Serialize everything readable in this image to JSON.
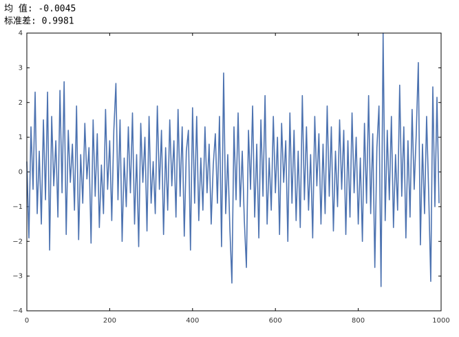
{
  "chart_data": {
    "type": "line",
    "annotations": [
      "均  值: -0.0045",
      "标准差: 0.9981"
    ],
    "x": [
      0,
      5,
      10,
      15,
      20,
      25,
      30,
      35,
      40,
      45,
      50,
      55,
      60,
      65,
      70,
      75,
      80,
      85,
      90,
      95,
      100,
      105,
      110,
      115,
      120,
      125,
      130,
      135,
      140,
      145,
      150,
      155,
      160,
      165,
      170,
      175,
      180,
      185,
      190,
      195,
      200,
      205,
      210,
      215,
      220,
      225,
      230,
      235,
      240,
      245,
      250,
      255,
      260,
      265,
      270,
      275,
      280,
      285,
      290,
      295,
      300,
      305,
      310,
      315,
      320,
      325,
      330,
      335,
      340,
      345,
      350,
      355,
      360,
      365,
      370,
      375,
      380,
      385,
      390,
      395,
      400,
      405,
      410,
      415,
      420,
      425,
      430,
      435,
      440,
      445,
      450,
      455,
      460,
      465,
      470,
      475,
      480,
      485,
      490,
      495,
      500,
      505,
      510,
      515,
      520,
      525,
      530,
      535,
      540,
      545,
      550,
      555,
      560,
      565,
      570,
      575,
      580,
      585,
      590,
      595,
      600,
      605,
      610,
      615,
      620,
      625,
      630,
      635,
      640,
      645,
      650,
      655,
      660,
      665,
      670,
      675,
      680,
      685,
      690,
      695,
      700,
      705,
      710,
      715,
      720,
      725,
      730,
      735,
      740,
      745,
      750,
      755,
      760,
      765,
      770,
      775,
      780,
      785,
      790,
      795,
      800,
      805,
      810,
      815,
      820,
      825,
      830,
      835,
      840,
      845,
      850,
      855,
      860,
      865,
      870,
      875,
      880,
      885,
      890,
      895,
      900,
      905,
      910,
      915,
      920,
      925,
      930,
      935,
      940,
      945,
      950,
      955,
      960,
      965,
      970,
      975,
      980,
      985,
      990,
      995
    ],
    "series": [
      {
        "color": "#4c72b0",
        "values": [
          0.3,
          -1.9,
          1.3,
          -0.5,
          2.3,
          -1.2,
          0.6,
          -1.5,
          1.5,
          -0.8,
          2.3,
          -2.25,
          1.6,
          -0.4,
          0.9,
          -1.3,
          2.35,
          -0.6,
          2.6,
          -1.8,
          1.2,
          -0.3,
          0.8,
          -1.1,
          1.9,
          -1.95,
          0.5,
          -0.9,
          1.4,
          -0.2,
          0.7,
          -2.05,
          1.5,
          -0.7,
          1.1,
          -1.6,
          0.2,
          -1.2,
          1.8,
          -0.5,
          0.9,
          -1.4,
          1.2,
          2.55,
          -0.8,
          1.5,
          -2.0,
          0.4,
          -1.0,
          1.3,
          -0.6,
          1.7,
          -1.5,
          0.5,
          -2.15,
          1.4,
          -0.3,
          1.0,
          -1.7,
          1.6,
          -0.9,
          0.3,
          -1.2,
          1.9,
          -0.5,
          1.2,
          -1.8,
          0.7,
          -1.1,
          1.5,
          -0.4,
          0.9,
          -1.3,
          1.8,
          -0.7,
          1.3,
          -1.85,
          0.6,
          1.2,
          -2.25,
          1.85,
          -0.9,
          1.6,
          -1.4,
          0.4,
          -1.1,
          1.3,
          -0.6,
          0.8,
          -1.5,
          0.2,
          1.1,
          -0.9,
          1.6,
          -2.15,
          2.85,
          -1.2,
          0.5,
          -1.6,
          -3.2,
          1.3,
          -0.8,
          1.7,
          -1.0,
          0.6,
          -1.4,
          -2.75,
          1.2,
          -0.5,
          1.9,
          -1.3,
          0.8,
          -1.9,
          1.5,
          -0.7,
          2.2,
          -1.5,
          0.4,
          -1.1,
          1.6,
          -0.6,
          1.0,
          -1.8,
          1.4,
          -0.3,
          0.9,
          -2.0,
          1.7,
          -0.9,
          1.2,
          -1.4,
          0.6,
          -1.6,
          2.2,
          -0.8,
          1.3,
          -1.1,
          0.5,
          -1.9,
          1.6,
          -0.4,
          1.1,
          -1.5,
          0.8,
          -1.2,
          1.9,
          -0.7,
          1.3,
          -1.7,
          0.6,
          -1.0,
          1.5,
          -0.5,
          1.2,
          -1.8,
          0.9,
          -1.3,
          1.7,
          -0.6,
          1.0,
          -1.5,
          0.4,
          -2.0,
          1.4,
          -0.9,
          2.2,
          -1.2,
          1.1,
          -2.75,
          0.7,
          1.9,
          -3.3,
          4.0,
          -1.4,
          1.2,
          -0.8,
          1.6,
          -1.6,
          0.5,
          -1.1,
          2.5,
          -0.7,
          1.3,
          -1.9,
          0.9,
          -1.3,
          1.8,
          -0.5,
          1.1,
          3.15,
          -2.1,
          0.8,
          -1.2,
          1.6,
          -0.6,
          -3.15,
          2.45,
          -1.0,
          2.15,
          -0.9
        ]
      }
    ],
    "xlim": [
      0,
      1000
    ],
    "xticks": [
      0,
      200,
      400,
      600,
      800,
      1000
    ],
    "ylim": [
      -4,
      4
    ],
    "yticks": [
      {
        "value": -4,
        "label": "−4"
      },
      {
        "value": -3,
        "label": "−3"
      },
      {
        "value": -2,
        "label": "−2"
      },
      {
        "value": -1,
        "label": "−1"
      },
      0,
      1,
      2,
      3,
      4
    ]
  }
}
